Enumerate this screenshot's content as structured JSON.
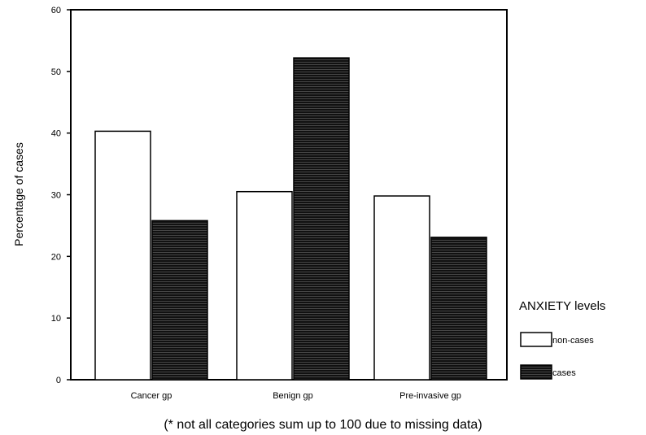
{
  "chart_data": {
    "type": "bar",
    "categories": [
      "Cancer gp",
      "Benign gp",
      "Pre-invasive gp"
    ],
    "series": [
      {
        "name": "non-cases",
        "values": [
          40.3,
          30.5,
          29.8
        ],
        "color": "#ffffff"
      },
      {
        "name": "cases",
        "values": [
          25.8,
          52.2,
          23.1
        ],
        "color": "#111111"
      }
    ],
    "ylabel": "Percentage of cases",
    "ylim": [
      0,
      60
    ],
    "yticks": [
      0,
      10,
      20,
      30,
      40,
      50,
      60
    ],
    "legend": {
      "title": "ANXIETY levels",
      "placement": "right"
    },
    "footnote": "(* not all categories sum up to 100 due to missing data)",
    "grid": false
  }
}
